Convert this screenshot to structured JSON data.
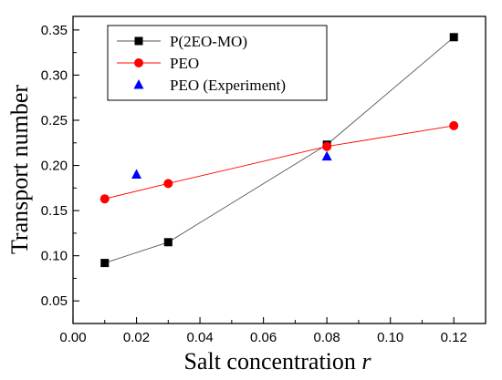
{
  "chart_data": {
    "type": "line",
    "title": "",
    "xlabel": "Salt concentration ",
    "xlabel_italic": "r",
    "ylabel": "Transport number",
    "xlim": [
      0.0,
      0.13
    ],
    "ylim": [
      0.025,
      0.365
    ],
    "x_ticks": [
      "0.00",
      "0.02",
      "0.04",
      "0.06",
      "0.08",
      "0.10",
      "0.12"
    ],
    "y_ticks": [
      "0.05",
      "0.10",
      "0.15",
      "0.20",
      "0.25",
      "0.30",
      "0.35"
    ],
    "legend_position": "top-left",
    "grid": false,
    "series": [
      {
        "name": "P(2EO-MO)",
        "marker": "square",
        "color": "#000000",
        "line_color": "#555555",
        "connected": true,
        "x": [
          0.01,
          0.03,
          0.08,
          0.12
        ],
        "y": [
          0.092,
          0.115,
          0.223,
          0.342
        ]
      },
      {
        "name": "PEO",
        "marker": "circle",
        "color": "#ff0000",
        "line_color": "#ff0000",
        "connected": true,
        "x": [
          0.01,
          0.03,
          0.08,
          0.12
        ],
        "y": [
          0.163,
          0.18,
          0.221,
          0.244
        ]
      },
      {
        "name": "PEO (Experiment)",
        "marker": "triangle",
        "color": "#0000ff",
        "line_color": "#0000ff",
        "connected": false,
        "x": [
          0.02,
          0.08
        ],
        "y": [
          0.19,
          0.21
        ]
      }
    ]
  }
}
